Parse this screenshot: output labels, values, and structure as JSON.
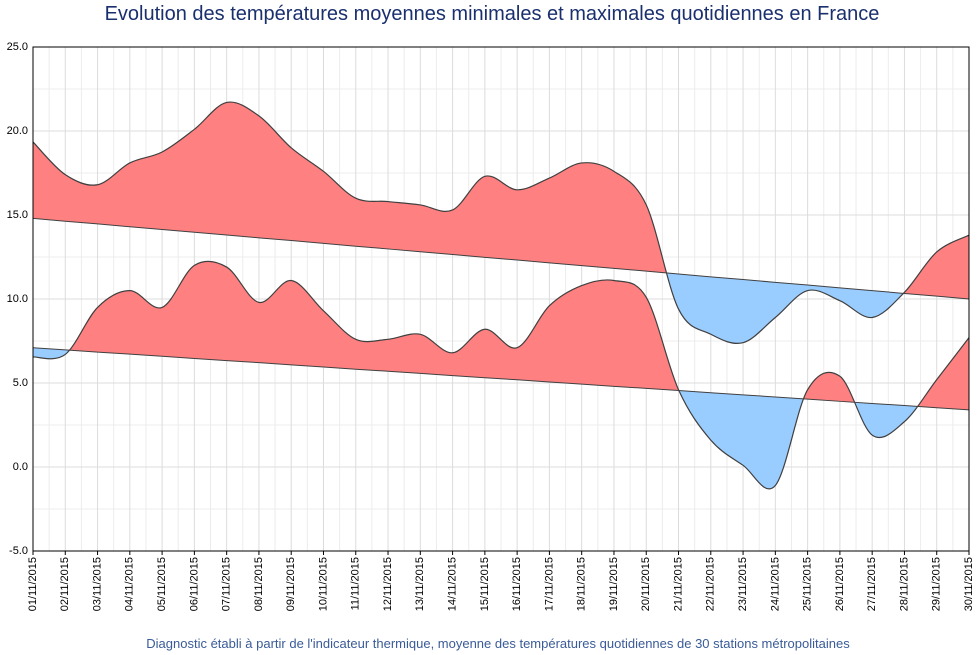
{
  "chart_data": {
    "type": "anomaly-area",
    "title": "Evolution des températures moyennes minimales et maximales quotidiennes en France",
    "subtitle": "Diagnostic établi à partir de l'indicateur thermique, moyenne des températures quotidiennes de 30 stations métropolitaines",
    "categories": [
      "01/11/2015",
      "02/11/2015",
      "03/11/2015",
      "04/11/2015",
      "05/11/2015",
      "06/11/2015",
      "07/11/2015",
      "08/11/2015",
      "09/11/2015",
      "10/11/2015",
      "11/11/2015",
      "12/11/2015",
      "13/11/2015",
      "14/11/2015",
      "15/11/2015",
      "16/11/2015",
      "17/11/2015",
      "18/11/2015",
      "19/11/2015",
      "20/11/2015",
      "21/11/2015",
      "22/11/2015",
      "23/11/2015",
      "24/11/2015",
      "25/11/2015",
      "26/11/2015",
      "27/11/2015",
      "28/11/2015",
      "29/11/2015",
      "30/11/2015"
    ],
    "series": [
      {
        "values": [
          19.35,
          17.4,
          16.8,
          18.1,
          18.75,
          20.1,
          21.7,
          20.9,
          19.0,
          17.6,
          16.0,
          15.8,
          15.6,
          15.3,
          17.3,
          16.5,
          17.2,
          18.1,
          17.6,
          15.6,
          9.4,
          7.9,
          7.4,
          8.9,
          10.5,
          9.9,
          8.9,
          10.4,
          12.8,
          13.8
        ],
        "normal": [
          14.8,
          14.63,
          14.47,
          14.3,
          14.14,
          13.97,
          13.81,
          13.64,
          13.48,
          13.31,
          13.14,
          12.98,
          12.81,
          12.65,
          12.48,
          12.32,
          12.15,
          11.99,
          11.82,
          11.66,
          11.49,
          11.32,
          11.16,
          10.99,
          10.83,
          10.66,
          10.5,
          10.33,
          10.17,
          10.0
        ]
      },
      {
        "values": [
          6.55,
          6.7,
          9.5,
          10.5,
          9.5,
          12.0,
          11.9,
          9.8,
          11.1,
          9.3,
          7.6,
          7.6,
          7.9,
          6.8,
          8.2,
          7.1,
          9.6,
          10.8,
          11.1,
          10.1,
          4.6,
          1.6,
          0.1,
          -1.1,
          4.6,
          5.4,
          1.9,
          2.7,
          5.2,
          7.7
        ],
        "normal": [
          7.1,
          6.97,
          6.84,
          6.72,
          6.59,
          6.46,
          6.33,
          6.21,
          6.08,
          5.95,
          5.82,
          5.7,
          5.57,
          5.44,
          5.31,
          5.19,
          5.06,
          4.93,
          4.8,
          4.68,
          4.55,
          4.42,
          4.29,
          4.17,
          4.04,
          3.91,
          3.78,
          3.66,
          3.53,
          3.4
        ]
      }
    ],
    "above_color": "#ff8080",
    "below_color": "#99ccff",
    "line_color": "#404040",
    "ylim": [
      -5,
      25
    ],
    "yticks": [
      {
        "value": -5,
        "label": "-5.0"
      },
      {
        "value": 0,
        "label": "0.0"
      },
      {
        "value": 5,
        "label": "5.0"
      },
      {
        "value": 10,
        "label": "10.0"
      },
      {
        "value": 15,
        "label": "15.0"
      },
      {
        "value": 20,
        "label": "20.0"
      },
      {
        "value": 25,
        "label": "25.0"
      }
    ],
    "grid": true
  }
}
